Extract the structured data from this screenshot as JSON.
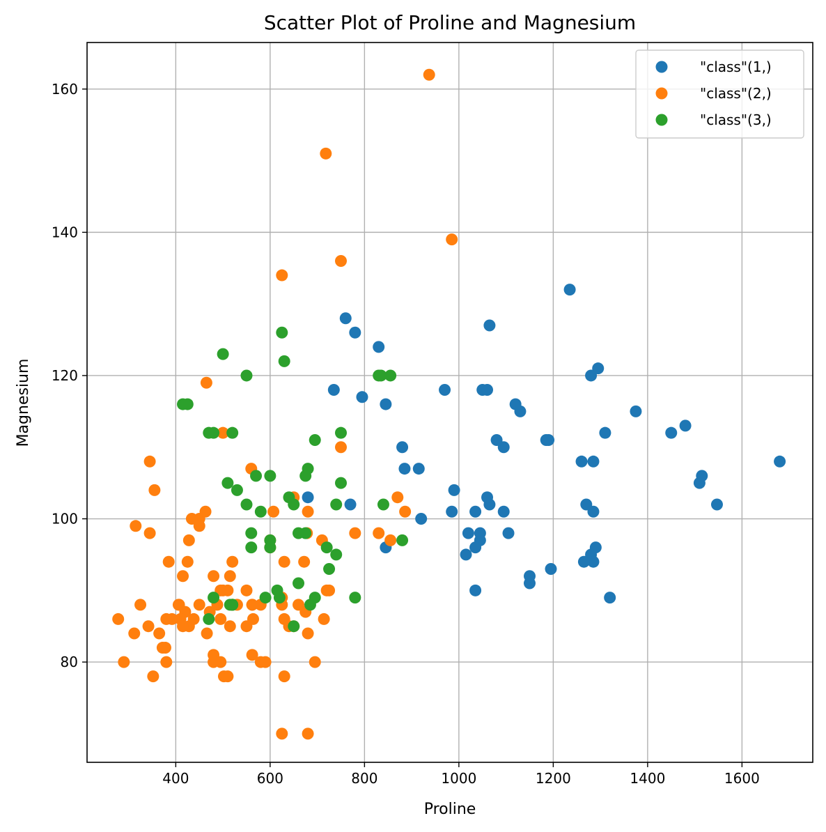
{
  "chart_data": {
    "type": "scatter",
    "title": "Scatter Plot of Proline and Magnesium",
    "xlabel": "Proline",
    "ylabel": "Magnesium",
    "xlim": [
      212,
      1750
    ],
    "ylim": [
      66,
      166.5
    ],
    "xticks": [
      400,
      600,
      800,
      1000,
      1200,
      1400,
      1600
    ],
    "yticks": [
      80,
      100,
      120,
      140,
      160
    ],
    "grid": true,
    "legend_position": "top-right",
    "series": [
      {
        "name": "\"class\"(1,)",
        "color": "#1f77b4",
        "points": [
          [
            1065,
            127
          ],
          [
            1050,
            118
          ],
          [
            1185,
            111
          ],
          [
            1480,
            113
          ],
          [
            735,
            118
          ],
          [
            1450,
            112
          ],
          [
            1290,
            96
          ],
          [
            1295,
            121
          ],
          [
            1045,
            97
          ],
          [
            1045,
            98
          ],
          [
            1510,
            105
          ],
          [
            1280,
            95
          ],
          [
            1320,
            89
          ],
          [
            1150,
            91
          ],
          [
            1547,
            102
          ],
          [
            1310,
            112
          ],
          [
            1280,
            120
          ],
          [
            1130,
            115
          ],
          [
            1680,
            108
          ],
          [
            845,
            116
          ],
          [
            780,
            126
          ],
          [
            770,
            102
          ],
          [
            1035,
            101
          ],
          [
            1015,
            95
          ],
          [
            845,
            96
          ],
          [
            830,
            124
          ],
          [
            1195,
            93
          ],
          [
            1285,
            94
          ],
          [
            915,
            107
          ],
          [
            1035,
            96
          ],
          [
            1285,
            101
          ],
          [
            1515,
            106
          ],
          [
            990,
            104
          ],
          [
            1235,
            132
          ],
          [
            1095,
            110
          ],
          [
            920,
            100
          ],
          [
            880,
            110
          ],
          [
            1105,
            98
          ],
          [
            1020,
            98
          ],
          [
            760,
            128
          ],
          [
            795,
            117
          ],
          [
            1035,
            90
          ],
          [
            1095,
            101
          ],
          [
            680,
            103
          ],
          [
            885,
            107
          ],
          [
            1080,
            111
          ],
          [
            1065,
            102
          ],
          [
            985,
            101
          ],
          [
            1060,
            103
          ],
          [
            1260,
            108
          ],
          [
            1150,
            92
          ],
          [
            1265,
            94
          ],
          [
            1190,
            111
          ],
          [
            1375,
            115
          ],
          [
            1060,
            118
          ],
          [
            1120,
            116
          ],
          [
            970,
            118
          ],
          [
            1270,
            102
          ],
          [
            1285,
            108
          ]
        ]
      },
      {
        "name": "\"class\"(2,)",
        "color": "#ff7f0e",
        "points": [
          [
            520,
            88
          ],
          [
            680,
            101
          ],
          [
            450,
            100
          ],
          [
            630,
            94
          ],
          [
            420,
            87
          ],
          [
            355,
            104
          ],
          [
            678,
            98
          ],
          [
            502,
            78
          ],
          [
            510,
            78
          ],
          [
            750,
            110
          ],
          [
            718,
            151
          ],
          [
            870,
            103
          ],
          [
            410,
            86
          ],
          [
            472,
            87
          ],
          [
            985,
            139
          ],
          [
            886,
            101
          ],
          [
            428,
            97
          ],
          [
            392,
            86
          ],
          [
            500,
            112
          ],
          [
            750,
            136
          ],
          [
            463,
            101
          ],
          [
            278,
            86
          ],
          [
            714,
            86
          ],
          [
            630,
            78
          ],
          [
            515,
            85
          ],
          [
            520,
            94
          ],
          [
            450,
            99
          ],
          [
            495,
            90
          ],
          [
            562,
            88
          ],
          [
            680,
            84
          ],
          [
            625,
            70
          ],
          [
            480,
            81
          ],
          [
            450,
            88
          ],
          [
            495,
            86
          ],
          [
            290,
            80
          ],
          [
            345,
            98
          ],
          [
            937,
            162
          ],
          [
            625,
            134
          ],
          [
            428,
            85
          ],
          [
            660,
            88
          ],
          [
            406,
            88
          ],
          [
            710,
            97
          ],
          [
            562,
            88
          ],
          [
            438,
            86
          ],
          [
            415,
            85
          ],
          [
            672,
            94
          ],
          [
            315,
            99
          ],
          [
            510,
            90
          ],
          [
            488,
            88
          ],
          [
            312,
            84
          ],
          [
            680,
            70
          ],
          [
            562,
            81
          ],
          [
            325,
            88
          ],
          [
            607,
            101
          ],
          [
            434,
            100
          ],
          [
            385,
            94
          ],
          [
            407,
            88
          ],
          [
            495,
            80
          ],
          [
            345,
            108
          ],
          [
            372,
            82
          ],
          [
            564,
            86
          ],
          [
            625,
            89
          ],
          [
            465,
            119
          ],
          [
            365,
            84
          ],
          [
            380,
            86
          ],
          [
            380,
            80
          ],
          [
            378,
            82
          ],
          [
            352,
            78
          ],
          [
            466,
            84
          ],
          [
            342,
            85
          ],
          [
            580,
            80
          ],
          [
            630,
            86
          ],
          [
            530,
            88
          ],
          [
            560,
            107
          ],
          [
            600,
            96
          ],
          [
            650,
            85
          ],
          [
            695,
            80
          ],
          [
            720,
            90
          ],
          [
            515,
            92
          ],
          [
            580,
            88
          ],
          [
            590,
            80
          ],
          [
            600,
            97
          ],
          [
            780,
            98
          ],
          [
            520,
            88
          ],
          [
            550,
            90
          ],
          [
            855,
            97
          ],
          [
            830,
            98
          ],
          [
            415,
            92
          ],
          [
            625,
            88
          ],
          [
            650,
            103
          ],
          [
            550,
            85
          ],
          [
            500,
            90
          ],
          [
            480,
            92
          ],
          [
            425,
            94
          ],
          [
            675,
            87
          ],
          [
            640,
            85
          ],
          [
            725,
            90
          ],
          [
            480,
            80
          ]
        ]
      },
      {
        "name": "\"class\"(3,)",
        "color": "#2ca02c",
        "points": [
          [
            630,
            122
          ],
          [
            530,
            104
          ],
          [
            560,
            98
          ],
          [
            600,
            106
          ],
          [
            650,
            85
          ],
          [
            695,
            89
          ],
          [
            720,
            96
          ],
          [
            515,
            88
          ],
          [
            580,
            101
          ],
          [
            590,
            89
          ],
          [
            600,
            97
          ],
          [
            780,
            89
          ],
          [
            520,
            112
          ],
          [
            550,
            102
          ],
          [
            855,
            120
          ],
          [
            830,
            120
          ],
          [
            415,
            116
          ],
          [
            625,
            126
          ],
          [
            650,
            102
          ],
          [
            550,
            120
          ],
          [
            500,
            123
          ],
          [
            480,
            112
          ],
          [
            425,
            116
          ],
          [
            675,
            98
          ],
          [
            640,
            103
          ],
          [
            725,
            93
          ],
          [
            480,
            89
          ],
          [
            880,
            97
          ],
          [
            660,
            98
          ],
          [
            620,
            89
          ],
          [
            520,
            88
          ],
          [
            680,
            107
          ],
          [
            570,
            106
          ],
          [
            675,
            106
          ],
          [
            615,
            90
          ],
          [
            520,
            88
          ],
          [
            695,
            111
          ],
          [
            685,
            88
          ],
          [
            510,
            105
          ],
          [
            470,
            112
          ],
          [
            660,
            91
          ],
          [
            740,
            102
          ],
          [
            750,
            112
          ],
          [
            835,
            120
          ],
          [
            840,
            102
          ],
          [
            560,
            96
          ],
          [
            470,
            86
          ],
          [
            740,
            95
          ],
          [
            750,
            105
          ],
          [
            600,
            96
          ]
        ]
      }
    ]
  }
}
